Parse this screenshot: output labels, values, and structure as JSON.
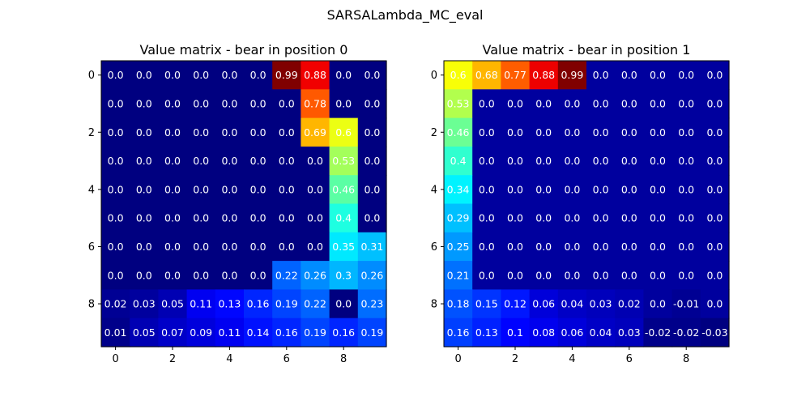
{
  "suptitle": "SARSALambda_MC_eval",
  "chart_data": [
    {
      "type": "heatmap",
      "title": "Value matrix - bear in position 0",
      "xticks": [
        "0",
        "2",
        "4",
        "6",
        "8"
      ],
      "yticks": [
        "0",
        "2",
        "4",
        "6",
        "8"
      ],
      "colormap": "jet",
      "values": [
        [
          0.0,
          0.0,
          0.0,
          0.0,
          0.0,
          0.0,
          0.99,
          0.88,
          0.0,
          0.0
        ],
        [
          0.0,
          0.0,
          0.0,
          0.0,
          0.0,
          0.0,
          0.0,
          0.78,
          0.0,
          0.0
        ],
        [
          0.0,
          0.0,
          0.0,
          0.0,
          0.0,
          0.0,
          0.0,
          0.69,
          0.6,
          0.0
        ],
        [
          0.0,
          0.0,
          0.0,
          0.0,
          0.0,
          0.0,
          0.0,
          0.0,
          0.53,
          0.0
        ],
        [
          0.0,
          0.0,
          0.0,
          0.0,
          0.0,
          0.0,
          0.0,
          0.0,
          0.46,
          0.0
        ],
        [
          0.0,
          0.0,
          0.0,
          0.0,
          0.0,
          0.0,
          0.0,
          0.0,
          0.4,
          0.0
        ],
        [
          0.0,
          0.0,
          0.0,
          0.0,
          0.0,
          0.0,
          0.0,
          0.0,
          0.35,
          0.31
        ],
        [
          0.0,
          0.0,
          0.0,
          0.0,
          0.0,
          0.0,
          0.22,
          0.26,
          0.3,
          0.26
        ],
        [
          0.02,
          0.03,
          0.05,
          0.11,
          0.13,
          0.16,
          0.19,
          0.22,
          0.0,
          0.23
        ],
        [
          0.01,
          0.05,
          0.07,
          0.09,
          0.11,
          0.14,
          0.16,
          0.19,
          0.16,
          0.19
        ]
      ],
      "labels": [
        [
          "0.0",
          "0.0",
          "0.0",
          "0.0",
          "0.0",
          "0.0",
          "0.99",
          "0.88",
          "0.0",
          "0.0"
        ],
        [
          "0.0",
          "0.0",
          "0.0",
          "0.0",
          "0.0",
          "0.0",
          "0.0",
          "0.78",
          "0.0",
          "0.0"
        ],
        [
          "0.0",
          "0.0",
          "0.0",
          "0.0",
          "0.0",
          "0.0",
          "0.0",
          "0.69",
          "0.6",
          "0.0"
        ],
        [
          "0.0",
          "0.0",
          "0.0",
          "0.0",
          "0.0",
          "0.0",
          "0.0",
          "0.0",
          "0.53",
          "0.0"
        ],
        [
          "0.0",
          "0.0",
          "0.0",
          "0.0",
          "0.0",
          "0.0",
          "0.0",
          "0.0",
          "0.46",
          "0.0"
        ],
        [
          "0.0",
          "0.0",
          "0.0",
          "0.0",
          "0.0",
          "0.0",
          "0.0",
          "0.0",
          "0.4",
          "0.0"
        ],
        [
          "0.0",
          "0.0",
          "0.0",
          "0.0",
          "0.0",
          "0.0",
          "0.0",
          "0.0",
          "0.35",
          "0.31"
        ],
        [
          "0.0",
          "0.0",
          "0.0",
          "0.0",
          "0.0",
          "0.0",
          "0.22",
          "0.26",
          "0.3",
          "0.26"
        ],
        [
          "0.02",
          "0.03",
          "0.05",
          "0.11",
          "0.13",
          "0.16",
          "0.19",
          "0.22",
          "0.0",
          "0.23"
        ],
        [
          "0.01",
          "0.05",
          "0.07",
          "0.09",
          "0.11",
          "0.14",
          "0.16",
          "0.19",
          "0.16",
          "0.19"
        ]
      ]
    },
    {
      "type": "heatmap",
      "title": "Value matrix - bear in position 1",
      "xticks": [
        "0",
        "2",
        "4",
        "6",
        "8"
      ],
      "yticks": [
        "0",
        "2",
        "4",
        "6",
        "8"
      ],
      "colormap": "jet",
      "values": [
        [
          0.6,
          0.68,
          0.77,
          0.88,
          0.99,
          0.0,
          0.0,
          0.0,
          0.0,
          0.0
        ],
        [
          0.53,
          0.0,
          0.0,
          0.0,
          0.0,
          0.0,
          0.0,
          0.0,
          0.0,
          0.0
        ],
        [
          0.46,
          0.0,
          0.0,
          0.0,
          0.0,
          0.0,
          0.0,
          0.0,
          0.0,
          0.0
        ],
        [
          0.4,
          0.0,
          0.0,
          0.0,
          0.0,
          0.0,
          0.0,
          0.0,
          0.0,
          0.0
        ],
        [
          0.34,
          0.0,
          0.0,
          0.0,
          0.0,
          0.0,
          0.0,
          0.0,
          0.0,
          0.0
        ],
        [
          0.29,
          0.0,
          0.0,
          0.0,
          0.0,
          0.0,
          0.0,
          0.0,
          0.0,
          0.0
        ],
        [
          0.25,
          0.0,
          0.0,
          0.0,
          0.0,
          0.0,
          0.0,
          0.0,
          0.0,
          0.0
        ],
        [
          0.21,
          0.0,
          0.0,
          0.0,
          0.0,
          0.0,
          0.0,
          0.0,
          0.0,
          0.0
        ],
        [
          0.18,
          0.15,
          0.12,
          0.06,
          0.04,
          0.03,
          0.02,
          0.0,
          -0.01,
          0.0
        ],
        [
          0.16,
          0.13,
          0.1,
          0.08,
          0.06,
          0.04,
          0.03,
          -0.02,
          -0.02,
          -0.03
        ]
      ],
      "labels": [
        [
          "0.6",
          "0.68",
          "0.77",
          "0.88",
          "0.99",
          "0.0",
          "0.0",
          "0.0",
          "0.0",
          "0.0"
        ],
        [
          "0.53",
          "0.0",
          "0.0",
          "0.0",
          "0.0",
          "0.0",
          "0.0",
          "0.0",
          "0.0",
          "0.0"
        ],
        [
          "0.46",
          "0.0",
          "0.0",
          "0.0",
          "0.0",
          "0.0",
          "0.0",
          "0.0",
          "0.0",
          "0.0"
        ],
        [
          "0.4",
          "0.0",
          "0.0",
          "0.0",
          "0.0",
          "0.0",
          "0.0",
          "0.0",
          "0.0",
          "0.0"
        ],
        [
          "0.34",
          "0.0",
          "0.0",
          "0.0",
          "0.0",
          "0.0",
          "0.0",
          "0.0",
          "0.0",
          "0.0"
        ],
        [
          "0.29",
          "0.0",
          "0.0",
          "0.0",
          "0.0",
          "0.0",
          "0.0",
          "0.0",
          "0.0",
          "0.0"
        ],
        [
          "0.25",
          "0.0",
          "0.0",
          "0.0",
          "0.0",
          "0.0",
          "0.0",
          "0.0",
          "0.0",
          "0.0"
        ],
        [
          "0.21",
          "0.0",
          "0.0",
          "0.0",
          "0.0",
          "0.0",
          "0.0",
          "0.0",
          "0.0",
          "0.0"
        ],
        [
          "0.18",
          "0.15",
          "0.12",
          "0.06",
          "0.04",
          "0.03",
          "0.02",
          "0.0",
          "-0.01",
          "0.0"
        ],
        [
          "0.16",
          "0.13",
          "0.1",
          "0.08",
          "0.06",
          "0.04",
          "0.03",
          "-0.02",
          "-0.02",
          "-0.03"
        ]
      ]
    }
  ]
}
